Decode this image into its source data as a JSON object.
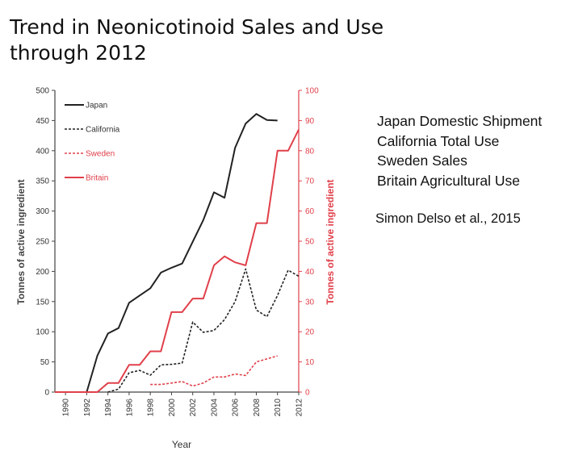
{
  "slide": {
    "title_line1": "Trend in Neonicotinoid Sales and Use",
    "title_line2": "through 2012",
    "legend_side": [
      "Japan Domestic Shipment",
      "California Total Use",
      "Sweden Sales",
      "Britain Agricultural Use"
    ],
    "citation": "Simon Delso et al., 2015"
  },
  "chart_data": {
    "type": "line",
    "title": "",
    "xlabel": "Year",
    "ylabel_left": "Tonnes of active ingredient",
    "ylabel_right": "Tonnes of active ingredient",
    "xlim": [
      1989,
      2012
    ],
    "ylim_left": [
      0,
      500
    ],
    "ylim_right": [
      0,
      100
    ],
    "x_ticks": [
      "1990",
      "1992",
      "1994",
      "1996",
      "1998",
      "2000",
      "2002",
      "2004",
      "2006",
      "2008",
      "2010",
      "2012"
    ],
    "y_ticks_left": [
      "0",
      "50",
      "100",
      "150",
      "200",
      "250",
      "300",
      "350",
      "400",
      "450",
      "500"
    ],
    "y_ticks_right": [
      "0",
      "10",
      "20",
      "30",
      "40",
      "50",
      "60",
      "70",
      "80",
      "90",
      "100"
    ],
    "legend_position": "top-left",
    "grid": false,
    "colors": {
      "black": "#222222",
      "red": "#e0404a"
    },
    "series": [
      {
        "name": "Japan",
        "axis": "left",
        "style": "solid",
        "color": "#222222",
        "x": [
          1992,
          1993,
          1994,
          1995,
          1996,
          1997,
          1998,
          1999,
          2000,
          2001,
          2002,
          2003,
          2004,
          2005,
          2006,
          2007,
          2008,
          2009,
          2010
        ],
        "y": [
          0,
          60,
          97,
          106,
          148,
          160,
          172,
          198,
          206,
          213,
          249,
          285,
          331,
          322,
          405,
          445,
          461,
          451,
          450
        ]
      },
      {
        "name": "California",
        "axis": "left",
        "style": "dashed",
        "color": "#222222",
        "x": [
          1994,
          1995,
          1996,
          1997,
          1998,
          1999,
          2000,
          2001,
          2002,
          2003,
          2004,
          2005,
          2006,
          2007,
          2008,
          2009,
          2010,
          2011,
          2012
        ],
        "y": [
          0,
          5,
          32,
          36,
          28,
          45,
          46,
          48,
          116,
          99,
          102,
          120,
          150,
          204,
          136,
          125,
          160,
          202,
          192
        ]
      },
      {
        "name": "Sweden",
        "axis": "right",
        "style": "dashed",
        "color": "#e0404a",
        "x": [
          1998,
          1999,
          2000,
          2001,
          2002,
          2003,
          2004,
          2005,
          2006,
          2007,
          2008,
          2009,
          2010
        ],
        "y": [
          2.5,
          2.5,
          3,
          3.5,
          2,
          3,
          5,
          5,
          6,
          5.5,
          10,
          11,
          12
        ]
      },
      {
        "name": "Britain",
        "axis": "right",
        "style": "solid",
        "color": "#e0404a",
        "x": [
          1989,
          1992,
          1993,
          1994,
          1995,
          1996,
          1997,
          1998,
          1999,
          2000,
          2001,
          2002,
          2003,
          2004,
          2005,
          2006,
          2007,
          2008,
          2009,
          2010,
          2011,
          2012
        ],
        "y": [
          0,
          0,
          0,
          3,
          3,
          9,
          9,
          13.5,
          13.5,
          26.5,
          26.5,
          31,
          31,
          42,
          45,
          43,
          42,
          56,
          56,
          80,
          80,
          87
        ]
      }
    ]
  }
}
